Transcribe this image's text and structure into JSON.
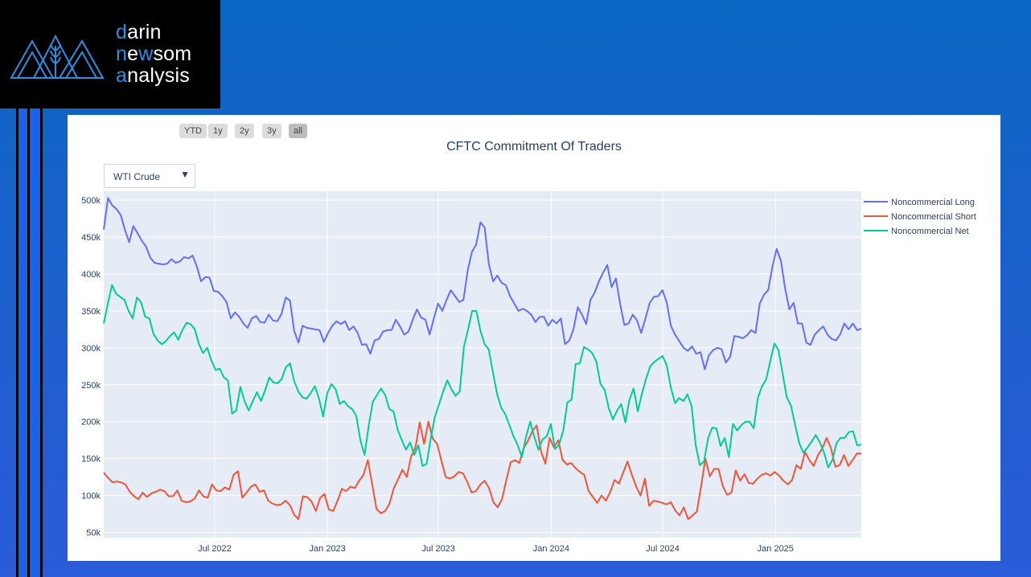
{
  "brand": {
    "line1_initial": "d",
    "line1_rest": "arin",
    "line2_initial": "n",
    "line2_mid": "e",
    "line2_w": "w",
    "line2_rest": "som",
    "line3_initial": "a",
    "line3_rest": "nalysis"
  },
  "range_selector": [
    "YTD",
    "1y",
    "2y",
    "3y",
    "all"
  ],
  "range_selector_active": "all",
  "dropdown": {
    "selected": "WTI Crude",
    "arrow": "▼"
  },
  "chart_data": {
    "type": "line",
    "title": "CFTC Commitment Of Traders",
    "xlabel": "",
    "ylabel": "",
    "ylim": [
      43000,
      512000
    ],
    "xlim_days": [
      0,
      1236
    ],
    "x_tick_labels": [
      "Jul 2022",
      "Jan 2023",
      "Jul 2023",
      "Jan 2024",
      "Jul 2024",
      "Jan 2025"
    ],
    "y_tick_labels": [
      "50k",
      "100k",
      "150k",
      "200k",
      "250k",
      "300k",
      "350k",
      "400k",
      "450k",
      "500k"
    ],
    "grid": true,
    "legend": "top-right",
    "plot_bg": "#e5ecf6",
    "series": [
      {
        "name": "Noncommercial Long",
        "color": "#636efa",
        "values": [
          460000,
          503000,
          493000,
          488000,
          480000,
          460000,
          443000,
          465000,
          455000,
          445000,
          437000,
          422000,
          415000,
          414000,
          413000,
          414000,
          420000,
          415000,
          417000,
          423000,
          421000,
          425000,
          410000,
          390000,
          396000,
          395000,
          377000,
          376000,
          370000,
          362000,
          340000,
          348000,
          342000,
          333000,
          327000,
          340000,
          343000,
          335000,
          334000,
          345000,
          337000,
          336000,
          346000,
          368000,
          364000,
          323000,
          307000,
          330000,
          327000,
          326000,
          325000,
          324000,
          308000,
          320000,
          330000,
          336000,
          332000,
          336000,
          324000,
          329000,
          320000,
          304000,
          305000,
          292000,
          310000,
          312000,
          322000,
          324000,
          324000,
          338000,
          329000,
          318000,
          322000,
          338000,
          352000,
          341000,
          338000,
          318000,
          340000,
          360000,
          350000,
          365000,
          378000,
          370000,
          362000,
          365000,
          405000,
          430000,
          440000,
          470000,
          463000,
          413000,
          390000,
          398000,
          388000,
          385000,
          370000,
          360000,
          350000,
          353000,
          350000,
          345000,
          335000,
          342000,
          342000,
          330000,
          338000,
          333000,
          340000,
          305000,
          310000,
          325000,
          355000,
          345000,
          332000,
          365000,
          375000,
          390000,
          402000,
          412000,
          382000,
          394000,
          360000,
          331000,
          333000,
          345000,
          337000,
          320000,
          340000,
          361000,
          369000,
          370000,
          378000,
          362000,
          330000,
          318000,
          309000,
          300000,
          296000,
          302000,
          292000,
          294000,
          271000,
          290000,
          297000,
          300000,
          298000,
          280000,
          288000,
          316000,
          315000,
          313000,
          317000,
          324000,
          320000,
          360000,
          372000,
          378000,
          410000,
          434000,
          418000,
          380000,
          352000,
          361000,
          333000,
          333000,
          307000,
          304000,
          318000,
          324000,
          329000,
          318000,
          312000,
          310000,
          318000,
          333000,
          325000,
          333000,
          324000,
          326000
        ]
      },
      {
        "name": "Noncommercial Short",
        "color": "#ef553b",
        "values": [
          131000,
          124000,
          118000,
          119000,
          118000,
          115000,
          105000,
          99000,
          95000,
          104000,
          98000,
          103000,
          105000,
          108000,
          106000,
          99000,
          99000,
          107000,
          93000,
          91000,
          92000,
          96000,
          107000,
          99000,
          97000,
          115000,
          107000,
          106000,
          111000,
          108000,
          128000,
          133000,
          97000,
          104000,
          112000,
          115000,
          105000,
          107000,
          93000,
          89000,
          87000,
          88000,
          93000,
          87000,
          74000,
          68000,
          99000,
          98000,
          92000,
          79000,
          97000,
          102000,
          81000,
          79000,
          93000,
          109000,
          106000,
          112000,
          110000,
          120000,
          128000,
          148000,
          116000,
          82000,
          76000,
          79000,
          89000,
          110000,
          122000,
          135000,
          125000,
          153000,
          165000,
          199000,
          170000,
          200000,
          177000,
          170000,
          147000,
          125000,
          123000,
          126000,
          132000,
          130000,
          118000,
          104000,
          106000,
          115000,
          120000,
          110000,
          91000,
          84000,
          95000,
          121000,
          145000,
          148000,
          144000,
          164000,
          174000,
          187000,
          195000,
          160000,
          143000,
          178000,
          165000,
          175000,
          148000,
          142000,
          144000,
          137000,
          132000,
          128000,
          106000,
          98000,
          90000,
          100000,
          93000,
          105000,
          121000,
          116000,
          131000,
          146000,
          128000,
          112000,
          100000,
          123000,
          86000,
          93000,
          92000,
          90000,
          88000,
          91000,
          80000,
          73000,
          84000,
          68000,
          73000,
          78000,
          113000,
          150000,
          126000,
          136000,
          136000,
          113000,
          101000,
          104000,
          134000,
          120000,
          129000,
          117000,
          116000,
          123000,
          128000,
          130000,
          127000,
          132000,
          127000,
          120000,
          115000,
          121000,
          141000,
          136000,
          159000,
          148000,
          140000,
          155000,
          164000,
          178000,
          164000,
          139000,
          141000,
          155000,
          140000,
          148000,
          157000,
          157000
        ]
      },
      {
        "name": "Noncommercial Net",
        "color": "#00cc96",
        "values": [
          333000,
          360000,
          385000,
          373000,
          369000,
          365000,
          350000,
          340000,
          368000,
          362000,
          342000,
          340000,
          319000,
          310000,
          305000,
          309000,
          316000,
          321000,
          311000,
          324000,
          334000,
          332000,
          325000,
          305000,
          293000,
          300000,
          283000,
          270000,
          272000,
          260000,
          256000,
          211000,
          215000,
          247000,
          228000,
          215000,
          228000,
          240000,
          228000,
          243000,
          260000,
          253000,
          252000,
          258000,
          274000,
          279000,
          255000,
          241000,
          233000,
          231000,
          239000,
          248000,
          231000,
          207000,
          239000,
          251000,
          244000,
          224000,
          228000,
          221000,
          217000,
          208000,
          175000,
          155000,
          194000,
          227000,
          236000,
          245000,
          236000,
          217000,
          214000,
          189000,
          175000,
          162000,
          172000,
          155000,
          168000,
          140000,
          143000,
          178000,
          207000,
          224000,
          241000,
          256000,
          244000,
          235000,
          241000,
          301000,
          325000,
          350000,
          350000,
          323000,
          305000,
          298000,
          267000,
          238000,
          219000,
          210000,
          195000,
          180000,
          168000,
          152000,
          179000,
          200000,
          180000,
          162000,
          176000,
          180000,
          197000,
          163000,
          169000,
          188000,
          226000,
          230000,
          278000,
          279000,
          301000,
          298000,
          293000,
          281000,
          251000,
          243000,
          218000,
          203000,
          215000,
          224000,
          199000,
          230000,
          245000,
          214000,
          238000,
          258000,
          275000,
          281000,
          285000,
          289000,
          276000,
          246000,
          225000,
          232000,
          228000,
          237000,
          221000,
          168000,
          141000,
          146000,
          178000,
          192000,
          191000,
          167000,
          178000,
          152000,
          197000,
          188000,
          195000,
          200000,
          200000,
          191000,
          232000,
          248000,
          257000,
          282000,
          306000,
          297000,
          265000,
          233000,
          222000,
          196000,
          171000,
          158000,
          165000,
          173000,
          182000,
          172000,
          158000,
          138000,
          148000,
          171000,
          178000,
          178000,
          186000,
          187000,
          168000,
          169000
        ]
      }
    ]
  }
}
